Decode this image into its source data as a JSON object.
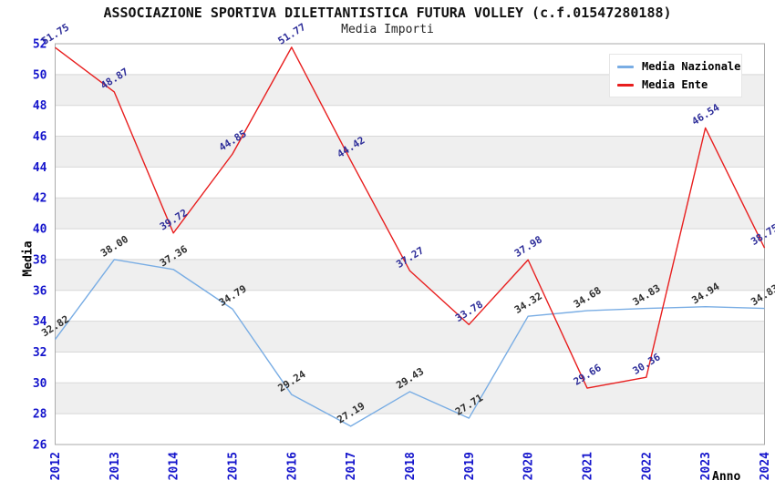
{
  "chart_data": {
    "type": "line",
    "title": "ASSOCIAZIONE SPORTIVA DILETTANTISTICA FUTURA VOLLEY (c.f.01547280188)",
    "subtitle": "Media Importi",
    "xlabel": "Anno",
    "ylabel": "Media",
    "ylim": [
      26,
      52
    ],
    "ytick_step": 2,
    "grid": true,
    "legend_position": "top-right",
    "categories": [
      "2012",
      "2013",
      "2014",
      "2015",
      "2016",
      "2017",
      "2018",
      "2019",
      "2020",
      "2021",
      "2022",
      "2023",
      "2024"
    ],
    "series": [
      {
        "name": "Media Nazionale",
        "color": "#79ade4",
        "label_color": "#2e2e2e",
        "values": [
          32.82,
          38.0,
          37.36,
          34.79,
          29.24,
          27.19,
          29.43,
          27.71,
          34.32,
          34.68,
          34.83,
          34.94,
          34.83
        ]
      },
      {
        "name": "Media Ente",
        "color": "#e81e1e",
        "label_color": "#2d2d99",
        "values": [
          51.75,
          48.87,
          39.72,
          44.85,
          51.77,
          44.42,
          37.27,
          33.78,
          37.98,
          29.66,
          30.36,
          46.54,
          38.75
        ]
      }
    ],
    "colors": {
      "axis_tick_label": "#1515cc",
      "band": "#efefef",
      "gridline": "#d8d8d8",
      "plot_border": "#aaaaaa",
      "title": "#111111"
    }
  }
}
